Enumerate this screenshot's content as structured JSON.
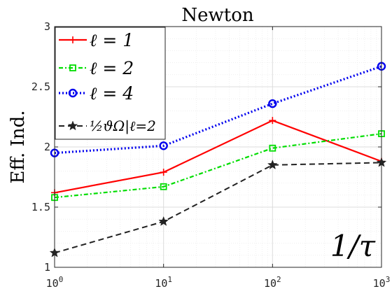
{
  "chart_data": {
    "type": "line",
    "title": "Newton",
    "xlabel": "",
    "ylabel": "Eff. Ind.",
    "x_scale": "log",
    "x": [
      1,
      10,
      100,
      1000
    ],
    "x_ticks": [
      {
        "base": "10",
        "exp": "0"
      },
      {
        "base": "10",
        "exp": "1"
      },
      {
        "base": "10",
        "exp": "2"
      },
      {
        "base": "10",
        "exp": "3"
      }
    ],
    "xlim": [
      1,
      1000
    ],
    "ylim": [
      1,
      3
    ],
    "y_ticks": [
      "1",
      "1.5",
      "2",
      "2.5",
      "3"
    ],
    "y_tick_values": [
      1,
      1.5,
      2,
      2.5,
      3
    ],
    "grid": true,
    "legend_position": "top-left",
    "annotation": "1/τ",
    "series": [
      {
        "name": "ℓ = 1",
        "color": "#ff0000",
        "dash": "solid",
        "marker": "plus",
        "values": [
          1.62,
          1.79,
          2.22,
          1.88
        ]
      },
      {
        "name": "ℓ = 2",
        "color": "#00dd00",
        "dash": "dash-dot",
        "marker": "square",
        "values": [
          1.58,
          1.67,
          1.99,
          2.11
        ]
      },
      {
        "name": "ℓ = 4",
        "color": "#0000ee",
        "dash": "dotted",
        "marker": "circle",
        "values": [
          1.95,
          2.01,
          2.36,
          2.67
        ]
      },
      {
        "name": "½ϑΩ|ℓ=2",
        "color": "#222222",
        "dash": "dashed",
        "marker": "star",
        "values": [
          1.12,
          1.38,
          1.85,
          1.87
        ]
      }
    ]
  }
}
